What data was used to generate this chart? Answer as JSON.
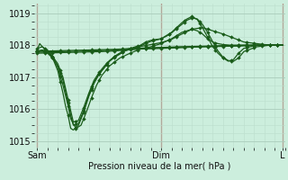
{
  "bg_color": "#cceedd",
  "grid_color_major": "#aaccbb",
  "grid_color_minor": "#bbddcc",
  "line_color": "#1a5c1a",
  "marker_color": "#1a5c1a",
  "xlabel": "Pression niveau de la mer( hPa )",
  "ylim": [
    1014.8,
    1019.3
  ],
  "yticks": [
    1015,
    1016,
    1017,
    1018,
    1019
  ],
  "xtick_labels": [
    "Sam",
    "Dim",
    "L"
  ],
  "xtick_positions": [
    0,
    48,
    95
  ],
  "vline_color": "#cc0000",
  "n_points": 96,
  "series": {
    "sa": {
      "xp": [
        0,
        5,
        10,
        15,
        20,
        25,
        30,
        35,
        40,
        48,
        55,
        60,
        65,
        70,
        75,
        80,
        85,
        90,
        95
      ],
      "yp": [
        1017.75,
        1017.76,
        1017.77,
        1017.78,
        1017.79,
        1017.8,
        1017.82,
        1017.85,
        1017.88,
        1017.9,
        1017.92,
        1017.94,
        1017.95,
        1017.96,
        1017.97,
        1017.98,
        1017.99,
        1018.0,
        1018.0
      ]
    },
    "sb": {
      "xp": [
        0,
        5,
        10,
        15,
        20,
        25,
        30,
        35,
        40,
        48,
        55,
        60,
        65,
        70,
        75,
        80,
        85,
        90,
        95
      ],
      "yp": [
        1017.78,
        1017.79,
        1017.8,
        1017.81,
        1017.82,
        1017.83,
        1017.85,
        1017.88,
        1017.9,
        1017.92,
        1017.94,
        1017.95,
        1017.96,
        1017.97,
        1017.98,
        1017.99,
        1018.0,
        1018.0,
        1018.0
      ]
    },
    "sc": {
      "xp": [
        0,
        5,
        10,
        15,
        20,
        25,
        30,
        35,
        40,
        48,
        55,
        60,
        65,
        70,
        75,
        80,
        85,
        90,
        95
      ],
      "yp": [
        1017.82,
        1017.82,
        1017.83,
        1017.84,
        1017.85,
        1017.86,
        1017.87,
        1017.89,
        1017.91,
        1017.93,
        1017.95,
        1017.96,
        1017.97,
        1017.98,
        1017.99,
        1018.0,
        1018.0,
        1018.0,
        1018.0
      ]
    },
    "sd": {
      "xp": [
        0,
        2,
        4,
        6,
        8,
        10,
        12,
        13,
        15,
        17,
        19,
        21,
        23,
        25,
        28,
        32,
        36,
        40,
        44,
        48,
        52,
        56,
        60,
        62,
        64,
        66,
        68,
        70,
        72,
        75,
        80,
        85,
        90,
        95
      ],
      "yp": [
        1017.9,
        1017.95,
        1017.85,
        1017.65,
        1017.3,
        1016.75,
        1016.1,
        1015.7,
        1015.4,
        1015.5,
        1015.9,
        1016.35,
        1016.75,
        1017.05,
        1017.35,
        1017.6,
        1017.75,
        1017.88,
        1017.95,
        1018.05,
        1018.2,
        1018.4,
        1018.5,
        1018.45,
        1018.35,
        1018.2,
        1018.1,
        1018.05,
        1018.02,
        1018.0,
        1018.0,
        1018.0,
        1018.0,
        1018.0
      ]
    },
    "se": {
      "xp": [
        0,
        1,
        2,
        4,
        6,
        8,
        10,
        11,
        12,
        13,
        14,
        16,
        18,
        20,
        22,
        24,
        26,
        28,
        30,
        32,
        34,
        36,
        38,
        40,
        42,
        44,
        46,
        48,
        50,
        52,
        54,
        56,
        58,
        60,
        62,
        64,
        66,
        68,
        70,
        72,
        74,
        76,
        78,
        80,
        85,
        90,
        95
      ],
      "yp": [
        1017.85,
        1018.05,
        1017.95,
        1017.8,
        1017.6,
        1017.2,
        1016.5,
        1016.1,
        1015.8,
        1015.4,
        1015.35,
        1015.5,
        1015.9,
        1016.4,
        1016.8,
        1017.1,
        1017.3,
        1017.5,
        1017.65,
        1017.75,
        1017.85,
        1017.9,
        1017.95,
        1018.0,
        1018.1,
        1018.15,
        1018.18,
        1018.2,
        1018.3,
        1018.4,
        1018.55,
        1018.7,
        1018.82,
        1018.9,
        1018.8,
        1018.55,
        1018.25,
        1017.95,
        1017.75,
        1017.6,
        1017.5,
        1017.55,
        1017.75,
        1017.9,
        1018.0,
        1018.0,
        1018.0
      ]
    },
    "sf": {
      "xp": [
        0,
        2,
        4,
        6,
        8,
        10,
        12,
        13,
        14,
        16,
        18,
        20,
        22,
        24,
        26,
        28,
        30,
        32,
        34,
        36,
        38,
        40,
        42,
        44,
        46,
        48,
        50,
        52,
        54,
        56,
        58,
        60,
        62,
        64,
        66,
        68,
        70,
        72,
        74,
        76,
        78,
        80,
        85,
        90,
        95
      ],
      "yp": [
        1017.8,
        1017.82,
        1017.75,
        1017.6,
        1017.35,
        1016.9,
        1016.2,
        1015.8,
        1015.5,
        1015.55,
        1015.95,
        1016.45,
        1016.85,
        1017.1,
        1017.3,
        1017.5,
        1017.62,
        1017.72,
        1017.82,
        1017.88,
        1017.93,
        1017.98,
        1018.05,
        1018.12,
        1018.16,
        1018.2,
        1018.28,
        1018.38,
        1018.52,
        1018.65,
        1018.78,
        1018.85,
        1018.82,
        1018.65,
        1018.4,
        1018.1,
        1017.82,
        1017.62,
        1017.52,
        1017.5,
        1017.6,
        1017.8,
        1017.95,
        1018.0,
        1018.0
      ]
    },
    "sg": {
      "xp": [
        0,
        2,
        4,
        6,
        8,
        10,
        12,
        13,
        14,
        16,
        18,
        20,
        22,
        24,
        26,
        28,
        30,
        32,
        34,
        36,
        38,
        40,
        44,
        48,
        52,
        56,
        60,
        64,
        68,
        72,
        80,
        90,
        95
      ],
      "yp": [
        1017.82,
        1017.85,
        1017.78,
        1017.65,
        1017.42,
        1017.0,
        1016.3,
        1015.95,
        1015.6,
        1015.65,
        1016.05,
        1016.5,
        1016.9,
        1017.15,
        1017.35,
        1017.52,
        1017.65,
        1017.75,
        1017.83,
        1017.88,
        1017.92,
        1017.96,
        1018.02,
        1018.08,
        1018.18,
        1018.35,
        1018.5,
        1018.55,
        1018.45,
        1018.35,
        1018.1,
        1018.0,
        1018.0
      ]
    }
  }
}
